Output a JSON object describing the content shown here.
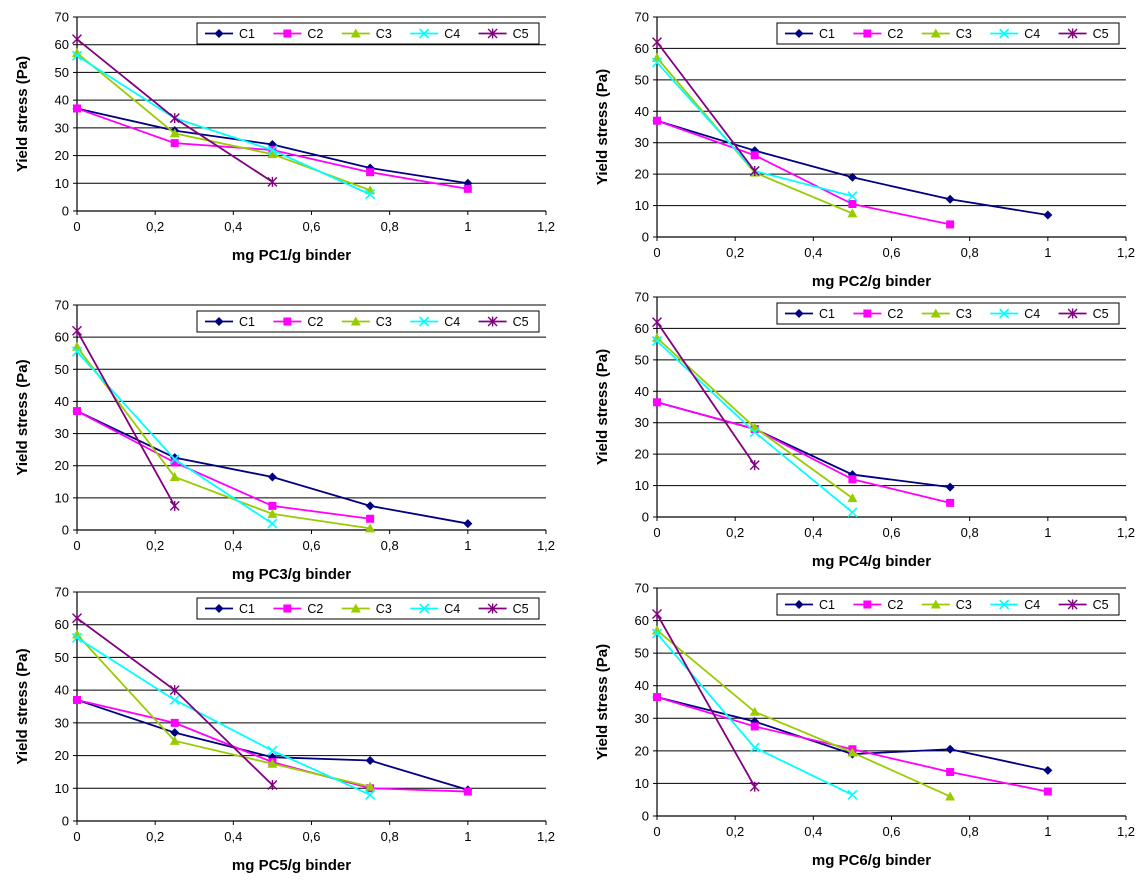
{
  "colors": {
    "C1": "#000080",
    "C2": "#ff00ff",
    "C3": "#99cc00",
    "C4": "#00ffff",
    "C5": "#800080"
  },
  "legend_placement": "top-right",
  "chart_data": [
    {
      "type": "line",
      "xlabel": "mg PC1/g binder",
      "ylabel": "Yield stress (Pa)",
      "xlim": [
        0,
        1.2
      ],
      "ylim": [
        0,
        70
      ],
      "xticks": [
        "0",
        "0,2",
        "0,4",
        "0,6",
        "0,8",
        "1",
        "1,2"
      ],
      "yticks": [
        "0",
        "10",
        "20",
        "30",
        "40",
        "50",
        "60",
        "70"
      ],
      "grid": "horizontal",
      "series": [
        {
          "name": "C1",
          "x": [
            0,
            0.25,
            0.5,
            0.75,
            1
          ],
          "y": [
            37,
            29,
            24,
            15.5,
            10
          ]
        },
        {
          "name": "C2",
          "x": [
            0,
            0.25,
            0.5,
            0.75,
            1
          ],
          "y": [
            37,
            24.5,
            22,
            14,
            8
          ]
        },
        {
          "name": "C3",
          "x": [
            0,
            0.25,
            0.5,
            0.75
          ],
          "y": [
            57,
            28,
            20.5,
            7.5
          ]
        },
        {
          "name": "C4",
          "x": [
            0,
            0.25,
            0.5,
            0.75
          ],
          "y": [
            56,
            33.5,
            22,
            6
          ]
        },
        {
          "name": "C5",
          "x": [
            0,
            0.25,
            0.5
          ],
          "y": [
            62,
            33.5,
            10.5
          ]
        }
      ]
    },
    {
      "type": "line",
      "xlabel": "mg PC2/g binder",
      "ylabel": "Yield stress (Pa)",
      "xlim": [
        0,
        1.2
      ],
      "ylim": [
        0,
        70
      ],
      "xticks": [
        "0",
        "0,2",
        "0,4",
        "0,6",
        "0,8",
        "1",
        "1,2"
      ],
      "yticks": [
        "0",
        "10",
        "20",
        "30",
        "40",
        "50",
        "60",
        "70"
      ],
      "grid": "horizontal",
      "series": [
        {
          "name": "C1",
          "x": [
            0,
            0.25,
            0.5,
            0.75,
            1
          ],
          "y": [
            37,
            27.5,
            19,
            12,
            7
          ]
        },
        {
          "name": "C2",
          "x": [
            0,
            0.25,
            0.5,
            0.75
          ],
          "y": [
            37,
            26,
            10.5,
            4
          ]
        },
        {
          "name": "C3",
          "x": [
            0,
            0.25,
            0.5
          ],
          "y": [
            57,
            20.5,
            7.5
          ]
        },
        {
          "name": "C4",
          "x": [
            0,
            0.25,
            0.5
          ],
          "y": [
            55.5,
            21,
            13
          ]
        },
        {
          "name": "C5",
          "x": [
            0,
            0.25
          ],
          "y": [
            62,
            21
          ]
        }
      ]
    },
    {
      "type": "line",
      "xlabel": "mg PC3/g binder",
      "ylabel": "Yield stress (Pa)",
      "xlim": [
        0,
        1.2
      ],
      "ylim": [
        0,
        70
      ],
      "xticks": [
        "0",
        "0,2",
        "0,4",
        "0,6",
        "0,8",
        "1",
        "1,2"
      ],
      "yticks": [
        "0",
        "10",
        "20",
        "30",
        "40",
        "50",
        "60",
        "70"
      ],
      "grid": "horizontal",
      "series": [
        {
          "name": "C1",
          "x": [
            0,
            0.25,
            0.5,
            0.75,
            1
          ],
          "y": [
            37,
            22.5,
            16.5,
            7.5,
            2
          ]
        },
        {
          "name": "C2",
          "x": [
            0,
            0.25,
            0.5,
            0.75
          ],
          "y": [
            37,
            21,
            7.5,
            3.5
          ]
        },
        {
          "name": "C3",
          "x": [
            0,
            0.25,
            0.5,
            0.75
          ],
          "y": [
            57,
            16.5,
            5,
            0.5
          ]
        },
        {
          "name": "C4",
          "x": [
            0,
            0.25,
            0.5
          ],
          "y": [
            55.5,
            22,
            2
          ]
        },
        {
          "name": "C5",
          "x": [
            0,
            0.25
          ],
          "y": [
            62,
            7.5
          ]
        }
      ]
    },
    {
      "type": "line",
      "xlabel": "mg PC4/g binder",
      "ylabel": "Yield stress (Pa)",
      "xlim": [
        0,
        1.2
      ],
      "ylim": [
        0,
        70
      ],
      "xticks": [
        "0",
        "0,2",
        "0,4",
        "0,6",
        "0,8",
        "1",
        "1,2"
      ],
      "yticks": [
        "0",
        "10",
        "20",
        "30",
        "40",
        "50",
        "60",
        "70"
      ],
      "grid": "horizontal",
      "series": [
        {
          "name": "C1",
          "x": [
            0,
            0.25,
            0.5,
            0.75
          ],
          "y": [
            36.5,
            28,
            13.5,
            9.5
          ]
        },
        {
          "name": "C2",
          "x": [
            0,
            0.25,
            0.5,
            0.75
          ],
          "y": [
            36.5,
            28,
            12,
            4.5
          ]
        },
        {
          "name": "C3",
          "x": [
            0,
            0.25,
            0.5
          ],
          "y": [
            57,
            28.5,
            6
          ]
        },
        {
          "name": "C4",
          "x": [
            0,
            0.25,
            0.5
          ],
          "y": [
            56,
            27,
            1.5
          ]
        },
        {
          "name": "C5",
          "x": [
            0,
            0.25
          ],
          "y": [
            62,
            16.5
          ]
        }
      ]
    },
    {
      "type": "line",
      "xlabel": "mg PC5/g binder",
      "ylabel": "Yield stress (Pa)",
      "xlim": [
        0,
        1.2
      ],
      "ylim": [
        0,
        70
      ],
      "xticks": [
        "0",
        "0,2",
        "0,4",
        "0,6",
        "0,8",
        "1",
        "1,2"
      ],
      "yticks": [
        "0",
        "10",
        "20",
        "30",
        "40",
        "50",
        "60",
        "70"
      ],
      "grid": "horizontal",
      "series": [
        {
          "name": "C1",
          "x": [
            0,
            0.25,
            0.5,
            0.75,
            1
          ],
          "y": [
            37,
            27,
            19.5,
            18.5,
            9.5
          ]
        },
        {
          "name": "C2",
          "x": [
            0,
            0.25,
            0.5,
            0.75,
            1
          ],
          "y": [
            37,
            30,
            18,
            10,
            9
          ]
        },
        {
          "name": "C3",
          "x": [
            0,
            0.25,
            0.5,
            0.75
          ],
          "y": [
            57,
            24.5,
            17.5,
            10.5
          ]
        },
        {
          "name": "C4",
          "x": [
            0,
            0.25,
            0.5,
            0.75
          ],
          "y": [
            56,
            37,
            21.5,
            8
          ]
        },
        {
          "name": "C5",
          "x": [
            0,
            0.25,
            0.5
          ],
          "y": [
            62,
            40,
            11
          ]
        }
      ]
    },
    {
      "type": "line",
      "xlabel": "mg PC6/g binder",
      "ylabel": "Yield stress (Pa)",
      "xlim": [
        0,
        1.2
      ],
      "ylim": [
        0,
        70
      ],
      "xticks": [
        "0",
        "0,2",
        "0,4",
        "0,6",
        "0,8",
        "1",
        "1,2"
      ],
      "yticks": [
        "0",
        "10",
        "20",
        "30",
        "40",
        "50",
        "60",
        "70"
      ],
      "grid": "horizontal",
      "series": [
        {
          "name": "C1",
          "x": [
            0,
            0.25,
            0.5,
            0.75,
            1
          ],
          "y": [
            36.5,
            29,
            19,
            20.5,
            14
          ]
        },
        {
          "name": "C2",
          "x": [
            0,
            0.25,
            0.5,
            0.75,
            1
          ],
          "y": [
            36.5,
            27.5,
            20.5,
            13.5,
            7.5
          ]
        },
        {
          "name": "C3",
          "x": [
            0,
            0.25,
            0.5,
            0.75
          ],
          "y": [
            57,
            32,
            19.5,
            6
          ]
        },
        {
          "name": "C4",
          "x": [
            0,
            0.25,
            0.5
          ],
          "y": [
            56,
            21,
            6.5
          ]
        },
        {
          "name": "C5",
          "x": [
            0,
            0.25
          ],
          "y": [
            62,
            9
          ]
        }
      ]
    }
  ]
}
